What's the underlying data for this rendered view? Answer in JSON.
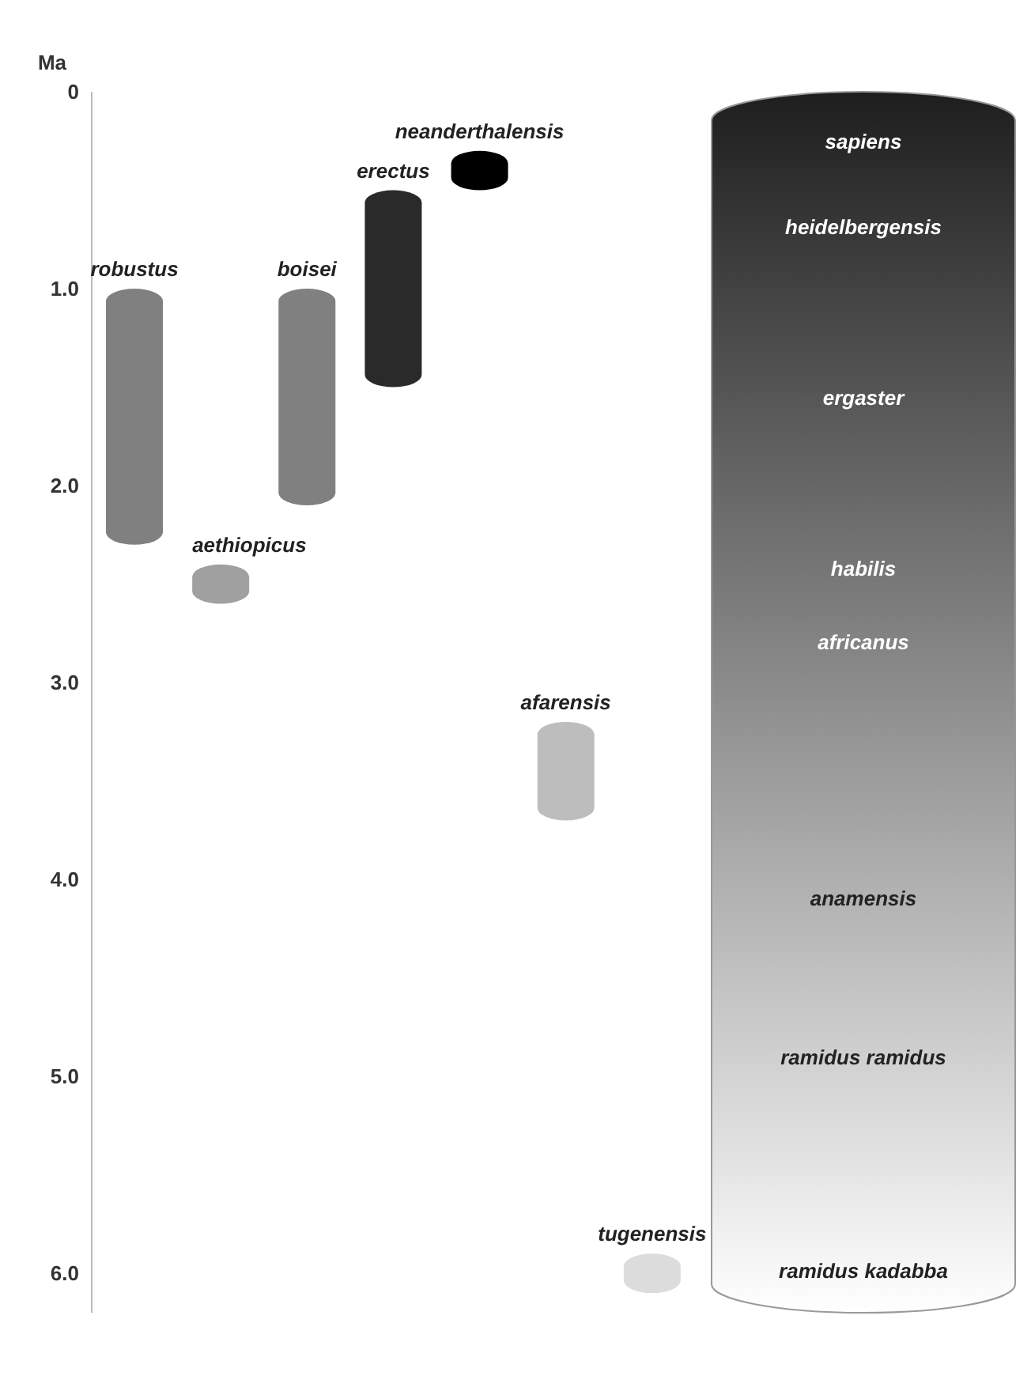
{
  "chart_data": {
    "type": "bar",
    "ylabel": "Ma",
    "categories": [
      "robustus",
      "aethiopicus",
      "boisei",
      "erectus",
      "neanderthalensis",
      "afarensis",
      "tugenensis"
    ],
    "base": [
      1.0,
      2.4,
      1.0,
      0.5,
      0.3,
      3.2,
      5.9
    ],
    "values": [
      1.3,
      0.2,
      1.1,
      1.0,
      0.2,
      0.5,
      0.2
    ],
    "colors": [
      "#808080",
      "#a0a0a0",
      "#808080",
      "#2a2a2a",
      "#000000",
      "#bdbdbd",
      "#dcdcdc"
    ],
    "ylim": [
      6.2,
      0
    ],
    "yticks": [
      {
        "value": 0,
        "label": "0"
      },
      {
        "value": 1,
        "label": "1.0"
      },
      {
        "value": 2,
        "label": "2.0"
      },
      {
        "value": 3,
        "label": "3.0"
      },
      {
        "value": 4,
        "label": "4.0"
      },
      {
        "value": 5,
        "label": "5.0"
      },
      {
        "value": 6,
        "label": "6.0"
      }
    ],
    "grid": false,
    "legend": false,
    "annotations": [
      "sapiens",
      "heidelbergensis",
      "ergaster",
      "habilis",
      "africanus",
      "anamensis",
      "ramidus ramidus",
      "ramidus kadabba"
    ]
  }
}
